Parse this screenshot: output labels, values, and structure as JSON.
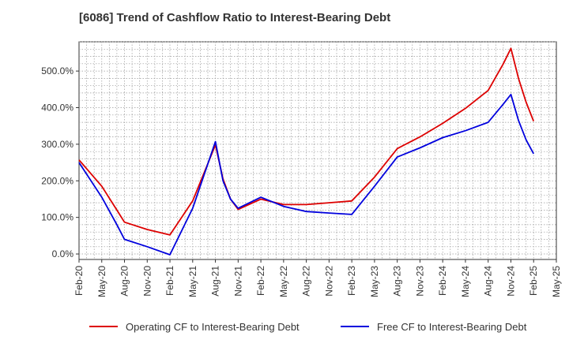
{
  "chart_data": {
    "type": "line",
    "title": "[6086]  Trend of Cashflow Ratio to Interest-Bearing Debt",
    "xlabel": "",
    "ylabel": "",
    "x_ticks": [
      "Feb-20",
      "May-20",
      "Aug-20",
      "Nov-20",
      "Feb-21",
      "May-21",
      "Aug-21",
      "Nov-21",
      "Feb-22",
      "May-22",
      "Aug-22",
      "Nov-22",
      "Feb-23",
      "May-23",
      "Aug-23",
      "Nov-23",
      "Feb-24",
      "May-24",
      "Aug-24",
      "Nov-24",
      "Feb-25",
      "May-25"
    ],
    "y_ticks": [
      "0.0%",
      "100.0%",
      "200.0%",
      "300.0%",
      "400.0%",
      "500.0%"
    ],
    "y_tick_values": [
      0,
      100,
      200,
      300,
      400,
      500
    ],
    "xlim": [
      "2020-02",
      "2025-05"
    ],
    "ylim": [
      -15,
      580
    ],
    "grid": true,
    "legend_position": "bottom",
    "series": [
      {
        "name": "Operating CF to Interest-Bearing Debt",
        "color": "#dd0000",
        "points": [
          [
            "2020-02",
            257
          ],
          [
            "2020-05",
            185
          ],
          [
            "2020-07",
            120
          ],
          [
            "2020-08",
            87
          ],
          [
            "2020-11",
            67
          ],
          [
            "2021-02",
            52
          ],
          [
            "2021-05",
            145
          ],
          [
            "2021-08",
            298
          ],
          [
            "2021-09",
            205
          ],
          [
            "2021-10",
            150
          ],
          [
            "2021-11",
            122
          ],
          [
            "2022-02",
            150
          ],
          [
            "2022-05",
            135
          ],
          [
            "2022-08",
            135
          ],
          [
            "2022-11",
            140
          ],
          [
            "2023-02",
            145
          ],
          [
            "2023-05",
            210
          ],
          [
            "2023-08",
            288
          ],
          [
            "2023-11",
            320
          ],
          [
            "2024-02",
            357
          ],
          [
            "2024-05",
            398
          ],
          [
            "2024-08",
            447
          ],
          [
            "2024-10",
            520
          ],
          [
            "2024-11",
            562
          ],
          [
            "2024-12",
            480
          ],
          [
            "2025-01",
            415
          ],
          [
            "2025-02",
            363
          ]
        ]
      },
      {
        "name": "Free CF to Interest-Bearing Debt",
        "color": "#0000dd",
        "points": [
          [
            "2020-02",
            250
          ],
          [
            "2020-05",
            155
          ],
          [
            "2020-07",
            80
          ],
          [
            "2020-08",
            40
          ],
          [
            "2020-11",
            20
          ],
          [
            "2021-02",
            -2
          ],
          [
            "2021-05",
            125
          ],
          [
            "2021-08",
            307
          ],
          [
            "2021-09",
            200
          ],
          [
            "2021-10",
            150
          ],
          [
            "2021-11",
            125
          ],
          [
            "2022-02",
            155
          ],
          [
            "2022-05",
            130
          ],
          [
            "2022-08",
            116
          ],
          [
            "2022-11",
            112
          ],
          [
            "2023-02",
            108
          ],
          [
            "2023-05",
            185
          ],
          [
            "2023-08",
            265
          ],
          [
            "2023-11",
            290
          ],
          [
            "2024-02",
            318
          ],
          [
            "2024-05",
            337
          ],
          [
            "2024-08",
            360
          ],
          [
            "2024-10",
            410
          ],
          [
            "2024-11",
            436
          ],
          [
            "2024-12",
            365
          ],
          [
            "2025-01",
            312
          ],
          [
            "2025-02",
            274
          ]
        ]
      }
    ]
  }
}
